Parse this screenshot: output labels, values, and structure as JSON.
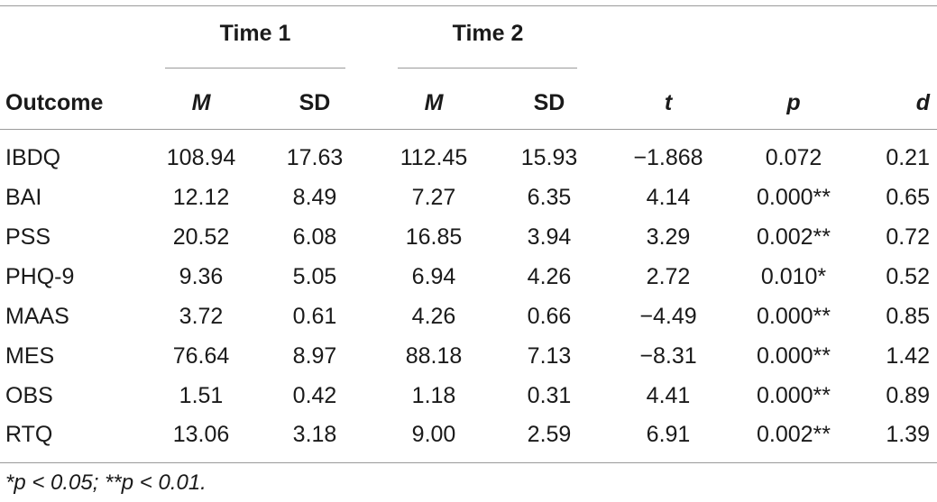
{
  "table": {
    "group_headers": [
      "Time 1",
      "Time 2"
    ],
    "columns": [
      "Outcome",
      "M",
      "SD",
      "M",
      "SD",
      "t",
      "p",
      "d"
    ],
    "rows": [
      [
        "IBDQ",
        "108.94",
        "17.63",
        "112.45",
        "15.93",
        "−1.868",
        "0.072",
        "0.21"
      ],
      [
        "BAI",
        "12.12",
        "8.49",
        "7.27",
        "6.35",
        "4.14",
        "0.000**",
        "0.65"
      ],
      [
        "PSS",
        "20.52",
        "6.08",
        "16.85",
        "3.94",
        "3.29",
        "0.002**",
        "0.72"
      ],
      [
        "PHQ-9",
        "9.36",
        "5.05",
        "6.94",
        "4.26",
        "2.72",
        "0.010*",
        "0.52"
      ],
      [
        "MAAS",
        "3.72",
        "0.61",
        "4.26",
        "0.66",
        "−4.49",
        "0.000**",
        "0.85"
      ],
      [
        "MES",
        "76.64",
        "8.97",
        "88.18",
        "7.13",
        "−8.31",
        "0.000**",
        "1.42"
      ],
      [
        "OBS",
        "1.51",
        "0.42",
        "1.18",
        "0.31",
        "4.41",
        "0.000**",
        "0.89"
      ],
      [
        "RTQ",
        "13.06",
        "3.18",
        "9.00",
        "2.59",
        "6.91",
        "0.002**",
        "1.39"
      ]
    ],
    "footnote": "*p < 0.05; **p < 0.01."
  }
}
